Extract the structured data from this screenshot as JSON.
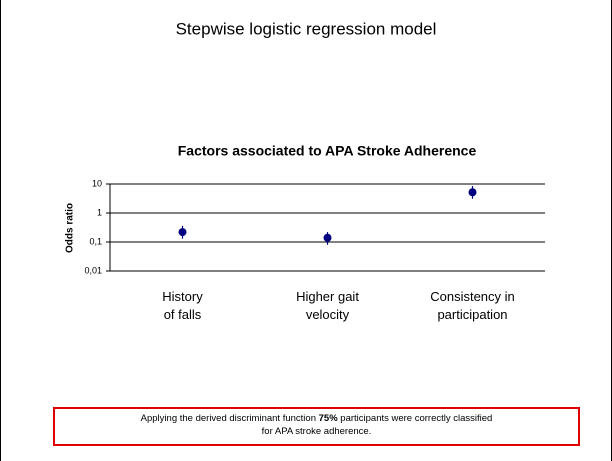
{
  "slide_title": "Stepwise logistic regression model",
  "chart_data": {
    "type": "errorpoint",
    "title": "Factors associated to APA Stroke Adherence",
    "ylabel": "Odds ratio",
    "categories": [
      "History\nof falls",
      "Higher gait\nvelocity",
      "Consistency in\nparticipation"
    ],
    "values": [
      0.22,
      0.14,
      5.2
    ],
    "ci_lower": [
      0.13,
      0.08,
      3.1
    ],
    "ci_upper": [
      0.36,
      0.22,
      8.5
    ],
    "color": "#000080",
    "log_scale": true,
    "ylim": [
      0.01,
      10
    ],
    "yticks": [
      {
        "value": 0.01,
        "label": "0,01"
      },
      {
        "value": 0.1,
        "label": "0,1"
      },
      1,
      10
    ],
    "grid": true
  },
  "note": {
    "before": "Applying the derived discriminant function ",
    "bold": "75%",
    "middle": " participants were correctly classified",
    "after": "for APA stroke adherence."
  }
}
